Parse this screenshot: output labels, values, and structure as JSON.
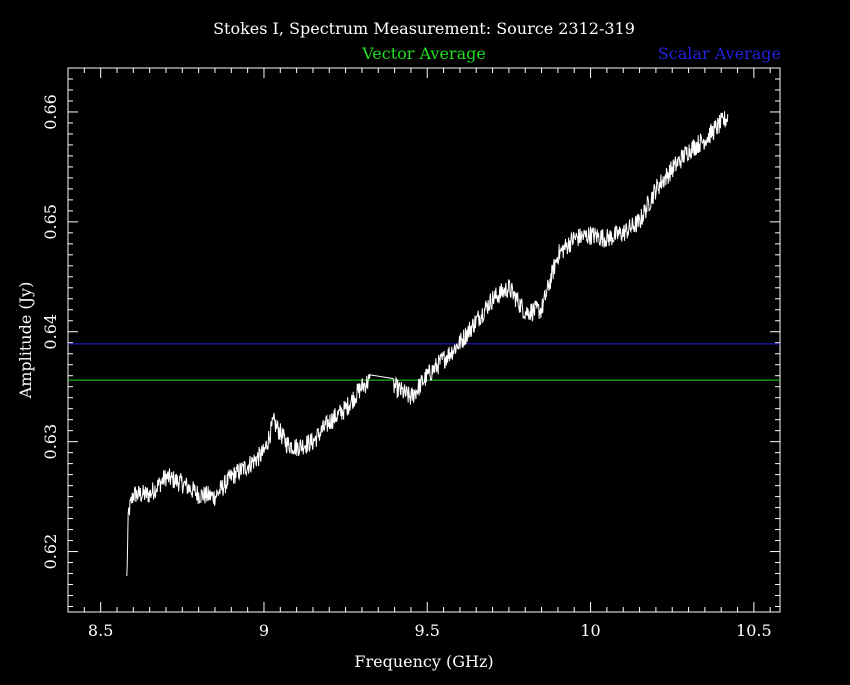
{
  "chart_data": {
    "type": "line",
    "title": "Stokes I, Spectrum Measurement: Source 2312-319",
    "xlabel": "Frequency (GHz)",
    "ylabel": "Amplitude (Jy)",
    "xlim": [
      8.4,
      10.58
    ],
    "ylim": [
      0.6145,
      0.664
    ],
    "x_ticks": [
      8.5,
      9,
      9.5,
      10,
      10.5
    ],
    "x_tick_labels": [
      "8.5",
      "9",
      "9.5",
      "10",
      "10.5"
    ],
    "y_ticks": [
      0.62,
      0.63,
      0.64,
      0.65,
      0.66
    ],
    "y_tick_labels": [
      "0.62",
      "0.63",
      "0.64",
      "0.65",
      "0.66"
    ],
    "legend": [
      {
        "label": "Vector Average",
        "color": "#22dd22",
        "placement": "top-center"
      },
      {
        "label": "Scalar Average",
        "color": "#2222dd",
        "placement": "top-right"
      }
    ],
    "reference_lines": [
      {
        "name": "Vector Average",
        "y": 0.6356,
        "color": "#22dd22"
      },
      {
        "name": "Scalar Average",
        "y": 0.6389,
        "color": "#2222dd"
      }
    ],
    "series": [
      {
        "color": "#ffffff",
        "noise_amplitude": 0.0009,
        "x": [
          8.58,
          8.585,
          8.6,
          8.65,
          8.7,
          8.75,
          8.8,
          8.85,
          8.9,
          8.95,
          9.0,
          9.03,
          9.07,
          9.1,
          9.15,
          9.2,
          9.25,
          9.3,
          9.32,
          9.4,
          9.45,
          9.5,
          9.55,
          9.6,
          9.65,
          9.7,
          9.75,
          9.8,
          9.85,
          9.9,
          9.95,
          10.0,
          10.05,
          10.1,
          10.15,
          10.2,
          10.25,
          10.3,
          10.35,
          10.4,
          10.42
        ],
        "y": [
          0.6175,
          0.6235,
          0.6252,
          0.6252,
          0.6268,
          0.6262,
          0.6252,
          0.625,
          0.6268,
          0.6278,
          0.629,
          0.6318,
          0.6298,
          0.6295,
          0.63,
          0.6318,
          0.633,
          0.635,
          0.6355,
          0.635,
          0.634,
          0.636,
          0.6375,
          0.639,
          0.641,
          0.643,
          0.644,
          0.6418,
          0.642,
          0.647,
          0.6485,
          0.6488,
          0.6485,
          0.649,
          0.65,
          0.653,
          0.6548,
          0.6565,
          0.6575,
          0.659,
          0.6595
        ]
      }
    ]
  }
}
